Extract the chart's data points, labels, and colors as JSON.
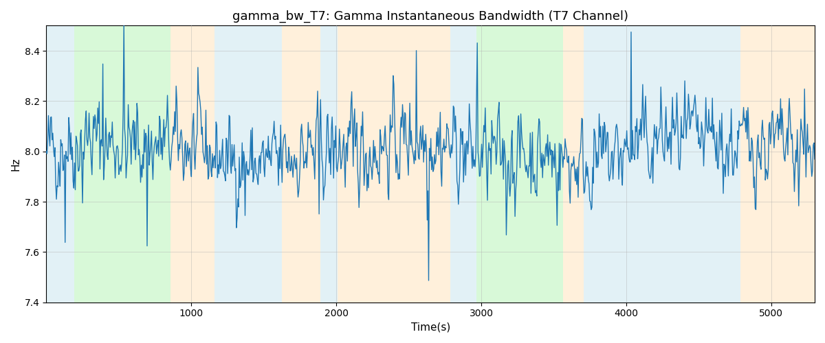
{
  "title": "gamma_bw_T7: Gamma Instantaneous Bandwidth (T7 Channel)",
  "xlabel": "Time(s)",
  "ylabel": "Hz",
  "ylim": [
    7.4,
    8.5
  ],
  "xlim": [
    0,
    5300
  ],
  "background_bands": [
    {
      "xmin": 0,
      "xmax": 195,
      "color": "#add8e6",
      "alpha": 0.35
    },
    {
      "xmin": 195,
      "xmax": 855,
      "color": "#90ee90",
      "alpha": 0.35
    },
    {
      "xmin": 855,
      "xmax": 1160,
      "color": "#ffd699",
      "alpha": 0.35
    },
    {
      "xmin": 1160,
      "xmax": 1625,
      "color": "#add8e6",
      "alpha": 0.35
    },
    {
      "xmin": 1625,
      "xmax": 1890,
      "color": "#ffd699",
      "alpha": 0.35
    },
    {
      "xmin": 1890,
      "xmax": 2010,
      "color": "#add8e6",
      "alpha": 0.35
    },
    {
      "xmin": 2010,
      "xmax": 2785,
      "color": "#ffd699",
      "alpha": 0.35
    },
    {
      "xmin": 2785,
      "xmax": 2965,
      "color": "#add8e6",
      "alpha": 0.35
    },
    {
      "xmin": 2965,
      "xmax": 3565,
      "color": "#90ee90",
      "alpha": 0.35
    },
    {
      "xmin": 3565,
      "xmax": 3705,
      "color": "#ffd699",
      "alpha": 0.35
    },
    {
      "xmin": 3705,
      "xmax": 4790,
      "color": "#add8e6",
      "alpha": 0.35
    },
    {
      "xmin": 4790,
      "xmax": 5300,
      "color": "#ffd699",
      "alpha": 0.35
    }
  ],
  "line_color": "#1f77b4",
  "line_width": 1.0,
  "grid_color": "#b0b0b0",
  "grid_alpha": 0.6,
  "title_fontsize": 13,
  "seed": 42,
  "n_points": 1060,
  "total_time": 5300,
  "base_value": 8.0,
  "noise_std": 0.09,
  "ar_coeff": 0.55,
  "spike_prob": 0.04,
  "spike_std": 0.18,
  "xticks": [
    1000,
    2000,
    3000,
    4000,
    5000
  ],
  "yticks": [
    7.4,
    7.6,
    7.8,
    8.0,
    8.2,
    8.4
  ]
}
